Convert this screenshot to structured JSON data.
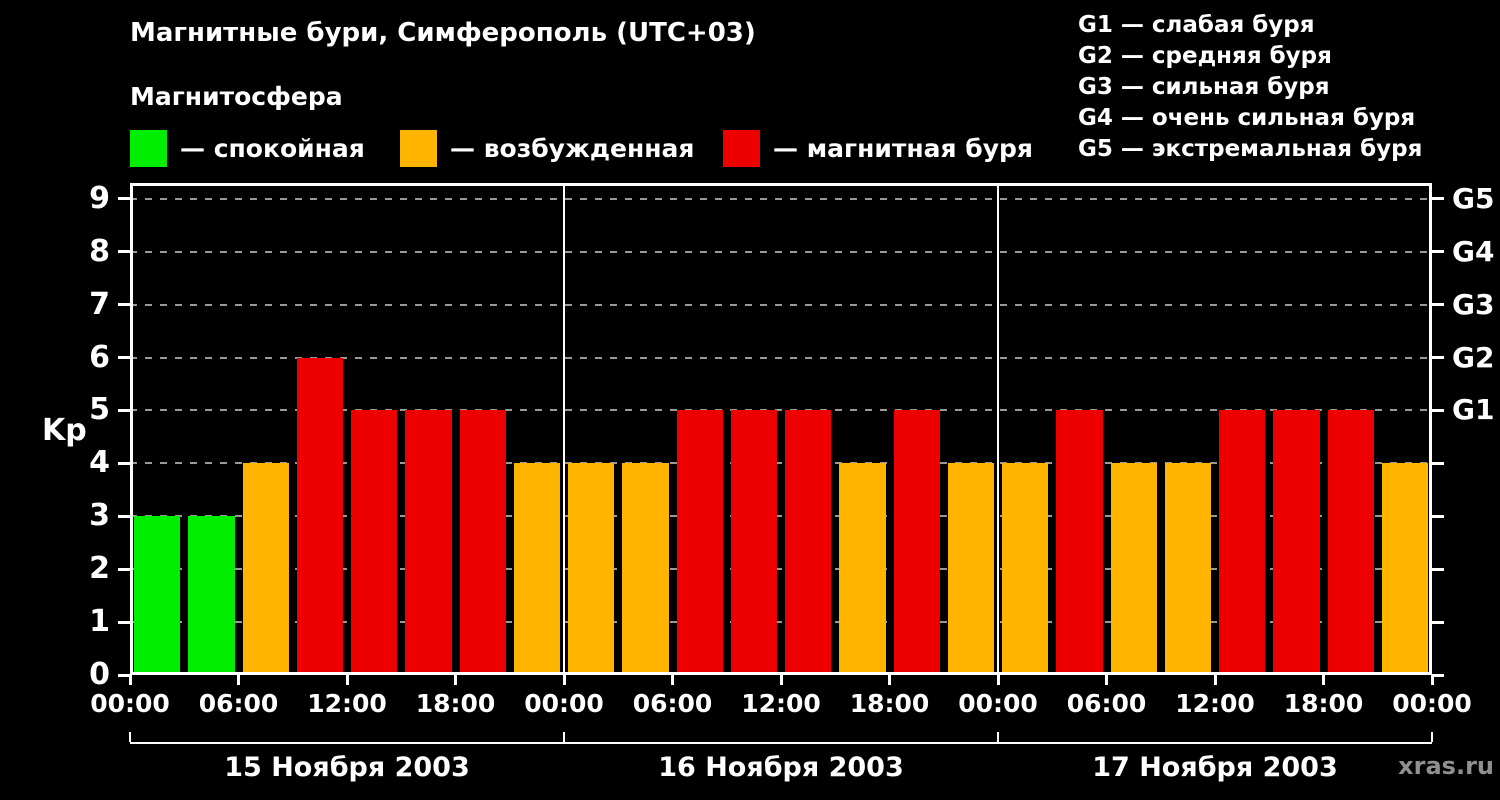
{
  "legend": {
    "title": "Магнитосфера",
    "items": [
      {
        "name": "quiet",
        "label": "— спокойная",
        "color": "#00ee00"
      },
      {
        "name": "active",
        "label": "— возбужденная",
        "color": "#ffb400"
      },
      {
        "name": "storm",
        "label": "— магнитная буря",
        "color": "#ee0000"
      }
    ]
  },
  "storm_scale": {
    "items": [
      "G1 — слабая буря",
      "G2 — средняя буря",
      "G3 — сильная буря",
      "G4 — очень сильная буря",
      "G5 — экстремальная буря"
    ]
  },
  "watermark": "xras.ru",
  "chart_data": {
    "type": "bar",
    "title": "Магнитные бури, Симферополь (UTC+03)",
    "ylabel": "Kp",
    "ylim": [
      0,
      9.3
    ],
    "yticks": [
      0,
      1,
      2,
      3,
      4,
      5,
      6,
      7,
      8,
      9
    ],
    "grid": true,
    "grid_color": "#999999",
    "axis_color": "#ffffff",
    "background": "#000000",
    "interval_hours": 3,
    "x_tick_labels": [
      "00:00",
      "06:00",
      "12:00",
      "18:00",
      "00:00",
      "06:00",
      "12:00",
      "18:00",
      "00:00",
      "06:00",
      "12:00",
      "18:00",
      "00:00"
    ],
    "right_axis_labels": [
      {
        "kp": 5,
        "label": "G1"
      },
      {
        "kp": 6,
        "label": "G2"
      },
      {
        "kp": 7,
        "label": "G3"
      },
      {
        "kp": 8,
        "label": "G4"
      },
      {
        "kp": 9,
        "label": "G5"
      }
    ],
    "color_rule": {
      "kp_0_3": "#00ee00",
      "kp_4": "#ffb400",
      "kp_5_9": "#ee0000"
    },
    "days": [
      {
        "date": "15 Ноября 2003",
        "kp_values": [
          3,
          3,
          4,
          6,
          5,
          5,
          5,
          4
        ]
      },
      {
        "date": "16 Ноября 2003",
        "kp_values": [
          4,
          4,
          5,
          5,
          5,
          4,
          5,
          4
        ]
      },
      {
        "date": "17 Ноября 2003",
        "kp_values": [
          4,
          5,
          4,
          4,
          5,
          5,
          5,
          4
        ]
      }
    ]
  }
}
